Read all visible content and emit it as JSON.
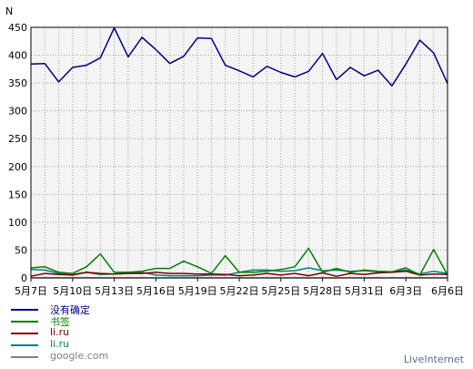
{
  "chart_data": {
    "type": "line",
    "ylabel": "N",
    "ylim": [
      0,
      450
    ],
    "yticks": [
      0,
      50,
      100,
      150,
      200,
      250,
      300,
      350,
      400,
      450
    ],
    "grid": true,
    "legend_position": "bottom-left",
    "categories": [
      "5月7日",
      "5月8日",
      "5月9日",
      "5月10日",
      "5月11日",
      "5月12日",
      "5月13日",
      "5月14日",
      "5月15日",
      "5月16日",
      "5月17日",
      "5月18日",
      "5月19日",
      "5月20日",
      "5月21日",
      "5月22日",
      "5月23日",
      "5月24日",
      "5月25日",
      "5月26日",
      "5月27日",
      "5月28日",
      "5月29日",
      "5月30日",
      "5月31日",
      "6月1日",
      "6月2日",
      "6月3日",
      "6月4日",
      "6月5日",
      "6月6日"
    ],
    "xtick_labels": [
      "5月7日",
      "5月10日",
      "5月13日",
      "5月16日",
      "5月19日",
      "5月22日",
      "5月25日",
      "5月28日",
      "5月31日",
      "6月3日",
      "6月6日"
    ],
    "xtick_indices": [
      0,
      3,
      6,
      9,
      12,
      15,
      18,
      21,
      24,
      27,
      30
    ],
    "series": [
      {
        "name": "没有确定",
        "color": "#000080",
        "values": [
          384,
          385,
          352,
          378,
          382,
          395,
          449,
          397,
          432,
          410,
          385,
          398,
          431,
          430,
          382,
          372,
          361,
          380,
          369,
          361,
          371,
          403,
          356,
          378,
          363,
          373,
          345,
          384,
          427,
          404,
          349
        ]
      },
      {
        "name": "书签",
        "color": "#008000",
        "values": [
          18,
          20,
          10,
          8,
          20,
          43,
          10,
          10,
          12,
          17,
          17,
          30,
          20,
          8,
          40,
          10,
          10,
          12,
          15,
          20,
          53,
          10,
          17,
          10,
          14,
          12,
          11,
          18,
          5,
          51,
          5
        ]
      },
      {
        "name": "li.ru",
        "color": "#800000",
        "values": [
          3,
          8,
          6,
          5,
          10,
          8,
          7,
          8,
          8,
          10,
          8,
          8,
          7,
          7,
          6,
          4,
          5,
          8,
          5,
          8,
          4,
          9,
          3,
          8,
          6,
          9,
          10,
          12,
          5,
          7,
          6
        ]
      },
      {
        "name": "li.ru",
        "color": "#008080",
        "values": [
          15,
          14,
          8,
          6,
          10,
          6,
          7,
          8,
          10,
          5,
          4,
          4,
          4,
          5,
          5,
          10,
          14,
          14,
          12,
          13,
          18,
          13,
          14,
          12,
          13,
          11,
          10,
          14,
          7,
          12,
          8
        ]
      },
      {
        "name": "google.com",
        "color": "#808080",
        "values": [
          0,
          0,
          0,
          0,
          0,
          0,
          0,
          0,
          0,
          0,
          0,
          0,
          0,
          0,
          0,
          0,
          0,
          0,
          0,
          0,
          0,
          0,
          0,
          0,
          0,
          0,
          0,
          0,
          0,
          0,
          0
        ]
      }
    ]
  },
  "watermark": "LiveInternet"
}
